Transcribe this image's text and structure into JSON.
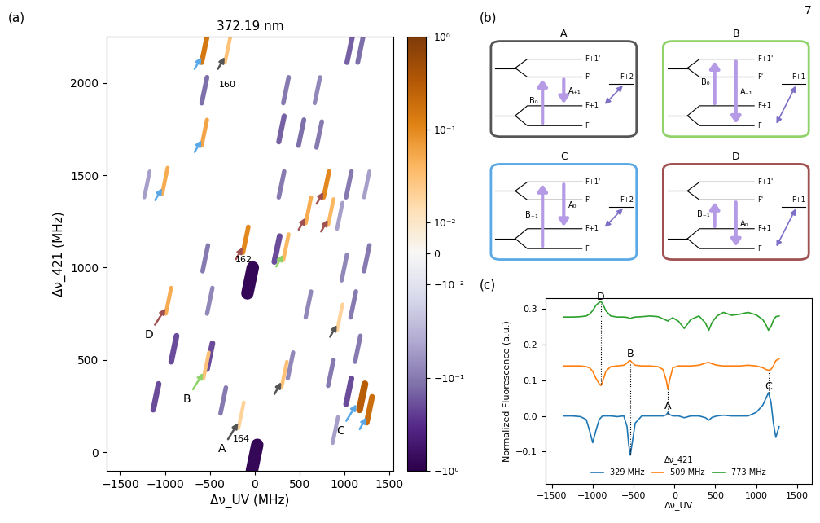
{
  "page_number": "7",
  "panel_labels": [
    "(a)",
    "(b)",
    "(c)"
  ],
  "chart_data": [
    {
      "type": "heatmap",
      "title": "372.19 nm",
      "x_label": "Δν_UV (MHz)",
      "y_label": "Δν_421 (MHz)",
      "xlim": [
        -1650,
        1550
      ],
      "ylim": [
        -100,
        2250
      ],
      "xticks": [
        {
          "value": -1500,
          "label": "−1500"
        },
        {
          "value": -1000,
          "label": "−1000"
        },
        {
          "value": -500,
          "label": "−500"
        },
        0,
        500,
        1000,
        1500
      ],
      "yticks": [
        0,
        500,
        1000,
        1500,
        2000
      ],
      "features": [
        {
          "x": -560,
          "y": 2180,
          "value": 0.15
        },
        {
          "x": -300,
          "y": 2180,
          "value": 0.03
        },
        {
          "x": 1060,
          "y": 2180,
          "value": -0.15
        },
        {
          "x": 1180,
          "y": 2180,
          "value": -0.12
        },
        {
          "x": -560,
          "y": 1960,
          "value": -0.12
        },
        {
          "x": 350,
          "y": 1960,
          "value": -0.1
        },
        {
          "x": 700,
          "y": 1960,
          "value": -0.08
        },
        {
          "x": -560,
          "y": 1730,
          "value": 0.06
        },
        {
          "x": 300,
          "y": 1750,
          "value": -0.15
        },
        {
          "x": 520,
          "y": 1730,
          "value": -0.12
        },
        {
          "x": 720,
          "y": 1720,
          "value": -0.1
        },
        {
          "x": -1000,
          "y": 1470,
          "value": 0.05
        },
        {
          "x": -1200,
          "y": 1450,
          "value": -0.05
        },
        {
          "x": 300,
          "y": 1450,
          "value": -0.1
        },
        {
          "x": 800,
          "y": 1450,
          "value": 0.1
        },
        {
          "x": 1050,
          "y": 1450,
          "value": -0.1
        },
        {
          "x": 1250,
          "y": 1450,
          "value": -0.05
        },
        {
          "x": 600,
          "y": 1310,
          "value": 0.05
        },
        {
          "x": 850,
          "y": 1300,
          "value": 0.04
        },
        {
          "x": 950,
          "y": 1280,
          "value": -0.05
        },
        {
          "x": -100,
          "y": 1150,
          "value": 0.1
        },
        {
          "x": 350,
          "y": 1110,
          "value": 0.04
        },
        {
          "x": -50,
          "y": 930,
          "value": -0.8
        },
        {
          "x": 250,
          "y": 1100,
          "value": -0.2
        },
        {
          "x": -550,
          "y": 1050,
          "value": -0.1
        },
        {
          "x": 1000,
          "y": 1000,
          "value": -0.08
        },
        {
          "x": 1250,
          "y": 1050,
          "value": -0.1
        },
        {
          "x": 600,
          "y": 800,
          "value": -0.08
        },
        {
          "x": -960,
          "y": 820,
          "value": 0.05
        },
        {
          "x": -500,
          "y": 820,
          "value": -0.08
        },
        {
          "x": 1100,
          "y": 800,
          "value": -0.1
        },
        {
          "x": 950,
          "y": 730,
          "value": 0.02
        },
        {
          "x": -900,
          "y": 560,
          "value": -0.2
        },
        {
          "x": -1100,
          "y": 300,
          "value": -0.2
        },
        {
          "x": -500,
          "y": 520,
          "value": -0.2
        },
        {
          "x": -540,
          "y": 470,
          "value": 0.03
        },
        {
          "x": -350,
          "y": 280,
          "value": -0.1
        },
        {
          "x": -150,
          "y": 200,
          "value": 0.02
        },
        {
          "x": 400,
          "y": 470,
          "value": -0.08
        },
        {
          "x": 330,
          "y": 420,
          "value": 0.03
        },
        {
          "x": 850,
          "y": 430,
          "value": -0.1
        },
        {
          "x": 1150,
          "y": 560,
          "value": -0.1
        },
        {
          "x": 1200,
          "y": 300,
          "value": 0.3
        },
        {
          "x": 1280,
          "y": 230,
          "value": 0.2
        },
        {
          "x": 1050,
          "y": 330,
          "value": -0.2
        },
        {
          "x": 900,
          "y": 120,
          "value": -0.05
        },
        {
          "x": 0,
          "y": -30,
          "value": -0.8
        }
      ],
      "colorbar": {
        "lim": [
          -1,
          1
        ],
        "ticks": [
          {
            "value": 1,
            "label": "10⁰"
          },
          {
            "value": 0.1,
            "label": "10⁻¹"
          },
          {
            "value": 0.01,
            "label": "10⁻²"
          },
          0,
          {
            "value": -0.01,
            "label": "−10⁻²"
          },
          {
            "value": -0.1,
            "label": "−10⁻¹"
          },
          {
            "value": -1,
            "label": "−10⁰"
          }
        ]
      },
      "annotations": [
        {
          "text": "A",
          "x": -170,
          "y": 170,
          "color": "#555555"
        },
        {
          "text": "B",
          "x": -560,
          "y": 440,
          "color": "#8fd36a"
        },
        {
          "text": "C",
          "x": 1150,
          "y": 270,
          "color": "#5aa9e6"
        },
        {
          "text": "D",
          "x": -980,
          "y": 790,
          "color": "#a05050"
        }
      ],
      "arrows": [
        {
          "x": -580,
          "y": 2150,
          "color": "#5aa9e6"
        },
        {
          "x": -320,
          "y": 2150,
          "color": "#555555"
        },
        {
          "x": -580,
          "y": 1700,
          "color": "#5aa9e6"
        },
        {
          "x": -1020,
          "y": 1440,
          "color": "#5aa9e6"
        },
        {
          "x": 780,
          "y": 1420,
          "color": "#a05050"
        },
        {
          "x": 580,
          "y": 1280,
          "color": "#a05050"
        },
        {
          "x": 830,
          "y": 1270,
          "color": "#a05050"
        },
        {
          "x": -120,
          "y": 1120,
          "color": "#a05050"
        },
        {
          "x": 330,
          "y": 1080,
          "color": "#8fd36a"
        },
        {
          "x": 930,
          "y": 700,
          "color": "#555555"
        },
        {
          "x": 310,
          "y": 390,
          "color": "#555555"
        },
        {
          "x": 1260,
          "y": 200,
          "color": "#5aa9e6"
        }
      ],
      "texts": [
        {
          "text": "160",
          "x": -300,
          "y": 1990
        },
        {
          "text": "162",
          "x": -120,
          "y": 1040
        },
        {
          "text": "164",
          "x": -150,
          "y": 70
        }
      ]
    },
    {
      "type": "line",
      "x_label": "Δν_UV",
      "y_label": "Normalized Fluorescence (a.u.)",
      "xlim": [
        -1580,
        1680
      ],
      "ylim": [
        -0.19,
        0.33
      ],
      "xticks": [
        {
          "value": -1500,
          "label": "−1500"
        },
        {
          "value": -1000,
          "label": "−1000"
        },
        {
          "value": -500,
          "label": "−500"
        },
        0,
        500,
        1000,
        1500
      ],
      "yticks": [
        {
          "value": -0.1,
          "label": "−0.1"
        },
        {
          "value": 0,
          "label": "0.0"
        },
        0.1,
        0.2,
        0.3
      ],
      "legend": "lower center",
      "legend_title": "Δν_421",
      "x": [
        -1350,
        -1250,
        -1150,
        -1080,
        -1040,
        -1000,
        -960,
        -920,
        -900,
        -880,
        -840,
        -780,
        -700,
        -620,
        -580,
        -560,
        -540,
        -520,
        -480,
        -400,
        -300,
        -200,
        -140,
        -100,
        -80,
        -60,
        -20,
        50,
        120,
        200,
        300,
        380,
        420,
        460,
        520,
        600,
        700,
        800,
        900,
        1000,
        1080,
        1120,
        1150,
        1180,
        1210,
        1240,
        1280
      ],
      "series": [
        {
          "name": "329 MHz",
          "color": "#1f77b4",
          "values": [
            0.0,
            0.0,
            -0.002,
            -0.01,
            -0.04,
            -0.075,
            -0.04,
            -0.01,
            -0.005,
            0.0,
            0.0,
            0.0,
            -0.002,
            0.0,
            -0.03,
            -0.08,
            -0.11,
            -0.08,
            -0.02,
            0.0,
            0.0,
            0.0,
            0.0,
            0.003,
            0.01,
            0.004,
            0.0,
            0.0,
            -0.005,
            0.0,
            0.0,
            -0.005,
            -0.012,
            -0.004,
            0.0,
            0.002,
            0.0,
            0.0,
            0.0,
            0.01,
            0.03,
            0.05,
            0.065,
            0.04,
            -0.02,
            -0.06,
            -0.03
          ]
        },
        {
          "name": "509 MHz",
          "color": "#ff7f0e",
          "values": [
            0.14,
            0.14,
            0.14,
            0.138,
            0.135,
            0.125,
            0.105,
            0.09,
            0.085,
            0.095,
            0.125,
            0.138,
            0.14,
            0.142,
            0.148,
            0.153,
            0.155,
            0.15,
            0.142,
            0.14,
            0.14,
            0.138,
            0.13,
            0.1,
            0.075,
            0.1,
            0.135,
            0.14,
            0.14,
            0.14,
            0.142,
            0.148,
            0.15,
            0.146,
            0.142,
            0.14,
            0.14,
            0.14,
            0.142,
            0.14,
            0.135,
            0.13,
            0.128,
            0.13,
            0.14,
            0.155,
            0.16
          ]
        },
        {
          "name": "773 MHz",
          "color": "#2ca02c",
          "values": [
            0.277,
            0.277,
            0.278,
            0.28,
            0.285,
            0.295,
            0.31,
            0.318,
            0.32,
            0.315,
            0.295,
            0.28,
            0.277,
            0.277,
            0.276,
            0.275,
            0.273,
            0.275,
            0.277,
            0.278,
            0.28,
            0.278,
            0.272,
            0.268,
            0.266,
            0.27,
            0.275,
            0.265,
            0.245,
            0.27,
            0.28,
            0.26,
            0.24,
            0.262,
            0.28,
            0.29,
            0.282,
            0.285,
            0.29,
            0.283,
            0.27,
            0.255,
            0.24,
            0.25,
            0.268,
            0.278,
            0.28
          ]
        }
      ],
      "guides": [
        {
          "label": "D",
          "x": -900,
          "y1": 0.09,
          "y2": 0.315,
          "label_y": 0.318
        },
        {
          "label": "B",
          "x": -540,
          "y1": -0.105,
          "y2": 0.15,
          "label_y": 0.158
        },
        {
          "label": "A",
          "x": -80,
          "y1": 0.005,
          "y2": 0.075,
          "label_y": 0.012
        },
        {
          "label": "C",
          "x": 1150,
          "y1": 0.065,
          "y2": 0.128,
          "label_y": 0.068
        }
      ]
    }
  ],
  "diagram": {
    "diagrams": [
      {
        "title": "A",
        "color": "#555555",
        "levels": [
          "F+1'",
          "F'",
          "F+1",
          "F"
        ],
        "side_level": "F+2",
        "side_from": "F+1",
        "pump": {
          "label": "B₀",
          "from": "F",
          "to": "F'"
        },
        "probe": {
          "label": "A₊₁",
          "from": "F'",
          "to": "F+1"
        }
      },
      {
        "title": "B",
        "color": "#8fd36a",
        "levels": [
          "F+1'",
          "F'",
          "F+1",
          "F"
        ],
        "side_level": "F+1",
        "side_from": "F",
        "pump": {
          "label": "B₀",
          "from": "F+1",
          "to": "F+1'"
        },
        "probe": {
          "label": "A₋₁",
          "from": "F+1'",
          "to": "F"
        }
      },
      {
        "title": "C",
        "color": "#5aa9e6",
        "levels": [
          "F+1'",
          "F'",
          "F+1",
          "F"
        ],
        "side_level": "F+2",
        "side_from": "F+1",
        "pump": {
          "label": "B₊₁",
          "from": "F",
          "to": "F+1'"
        },
        "probe": {
          "label": "A₀",
          "from": "F+1'",
          "to": "F+1"
        }
      },
      {
        "title": "D",
        "color": "#a05050",
        "levels": [
          "F+1'",
          "F'",
          "F+1",
          "F"
        ],
        "side_level": "F+1",
        "side_from": "F",
        "pump": {
          "label": "B₋₁",
          "from": "F+1",
          "to": "F'"
        },
        "probe": {
          "label": "A₀",
          "from": "F'",
          "to": "F"
        }
      }
    ]
  }
}
